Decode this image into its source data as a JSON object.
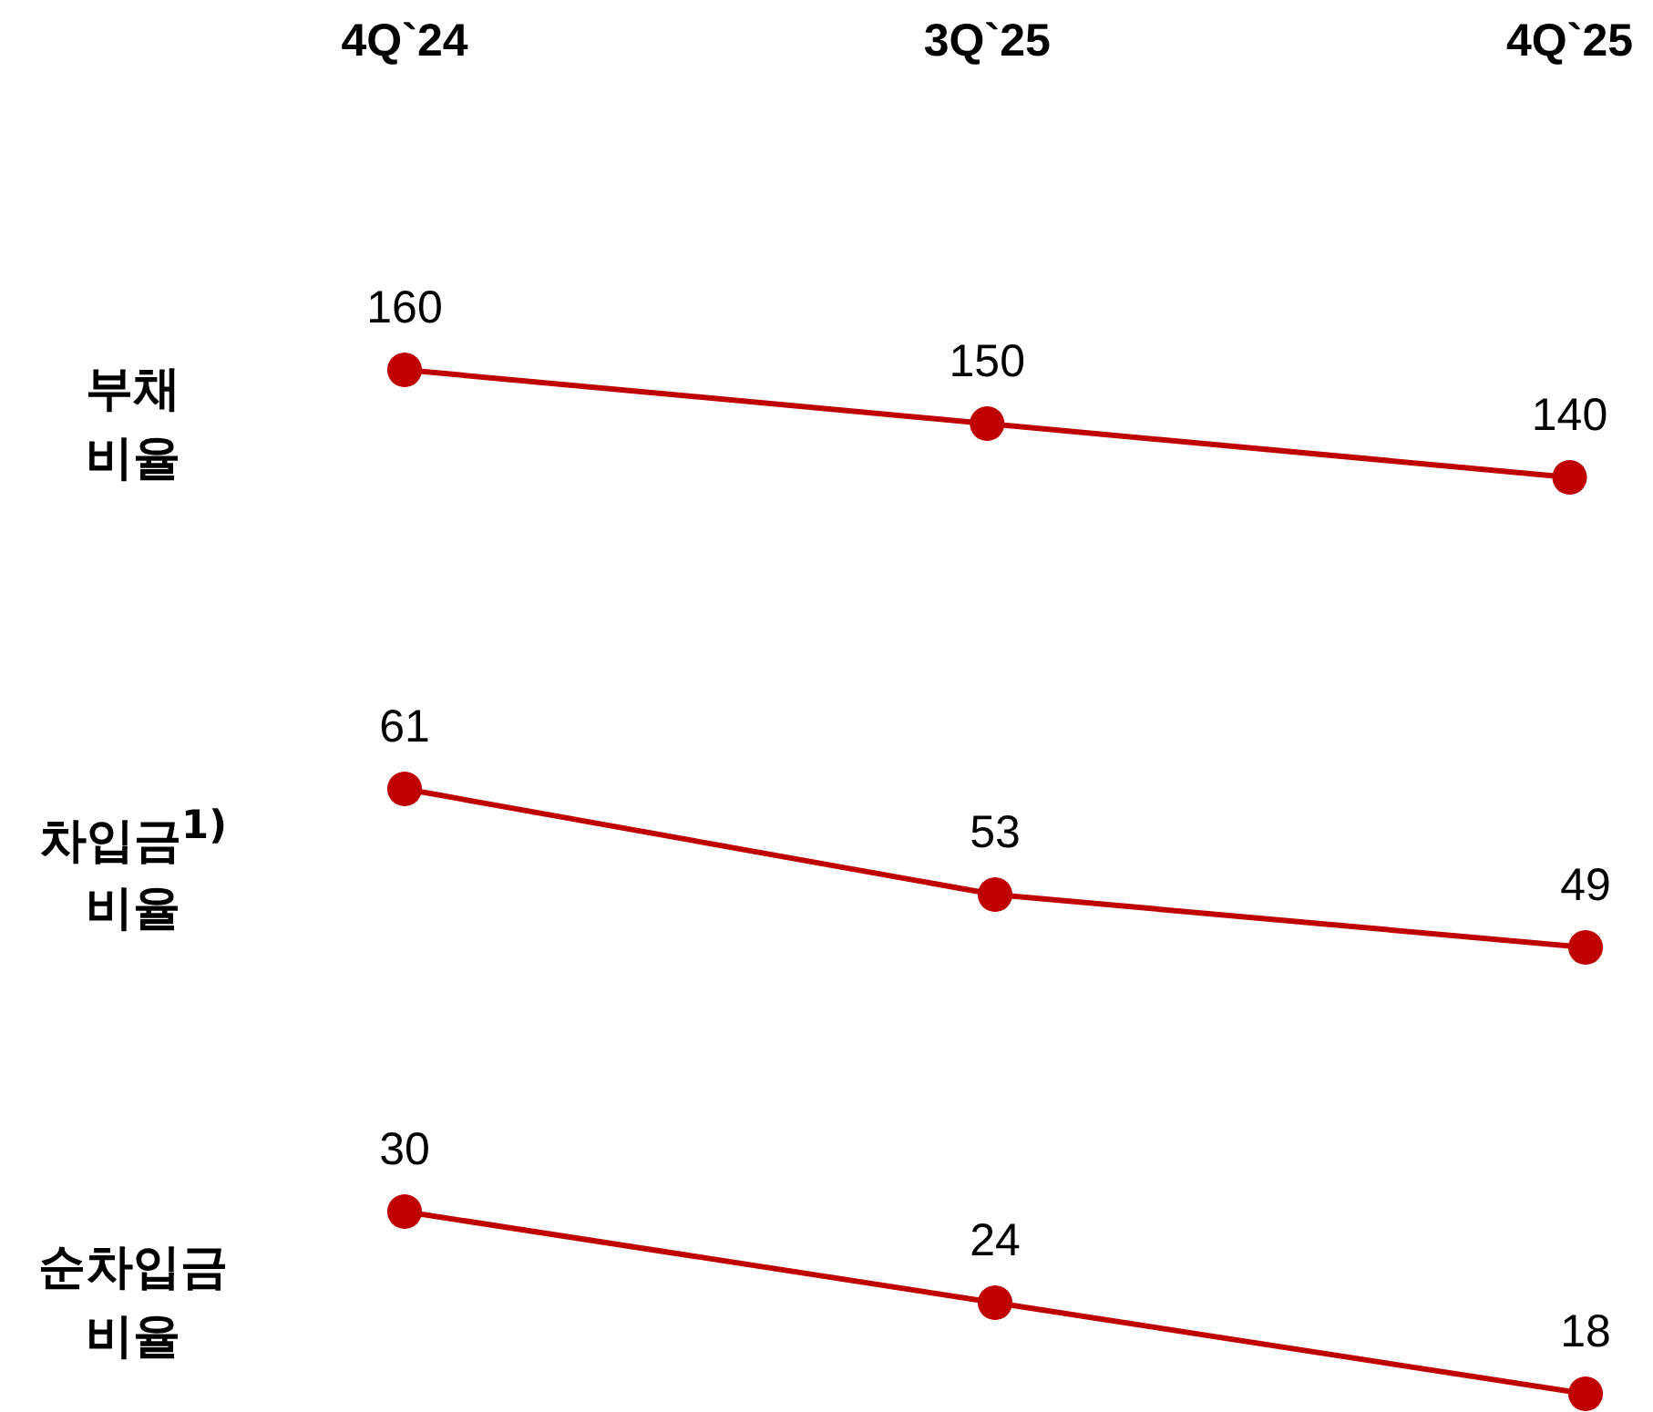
{
  "chart_data": [
    {
      "type": "line",
      "ylabel": "부채\n비율",
      "categories": [
        "4Q`24",
        "3Q`25",
        "4Q`25"
      ],
      "values": [
        160,
        150,
        140
      ],
      "color": "#c00000",
      "marker": "circle",
      "data_labels": true,
      "tick_labels": "x"
    },
    {
      "type": "line",
      "ylabel": "차입금$^{1)}$\n비율",
      "categories": [
        null,
        null,
        null
      ],
      "values": [
        61,
        53,
        49
      ],
      "color": "#c00000",
      "marker": "circle",
      "data_labels": true,
      "tick_labels": false
    },
    {
      "type": "line",
      "ylabel": "순차입금\n비율",
      "categories": [
        null,
        null,
        null
      ],
      "values": [
        30,
        24,
        18
      ],
      "color": "#c00000",
      "marker": "circle",
      "data_labels": true,
      "tick_labels": false
    }
  ]
}
